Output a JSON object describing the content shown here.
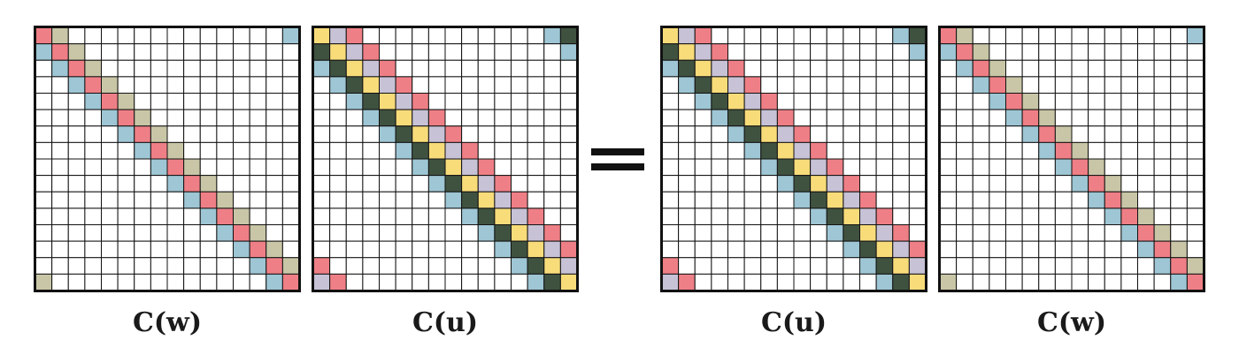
{
  "equation": {
    "lhs": [
      {
        "label": "C(w)",
        "kind": "w"
      },
      {
        "label": "C(u)",
        "kind": "u"
      }
    ],
    "rhs": [
      {
        "label": "C(u)",
        "kind": "u"
      },
      {
        "label": "C(w)",
        "kind": "w"
      }
    ]
  },
  "grid_size": 16,
  "colors": {
    "olive": "#c8c6a6",
    "pink": "#ef7f86",
    "blue": "#9ec6d4",
    "dark": "#3f5240",
    "yellow": "#f8dc7a",
    "lavender": "#c7c2d6",
    "grid": "#111111",
    "background": "#ffffff"
  }
}
